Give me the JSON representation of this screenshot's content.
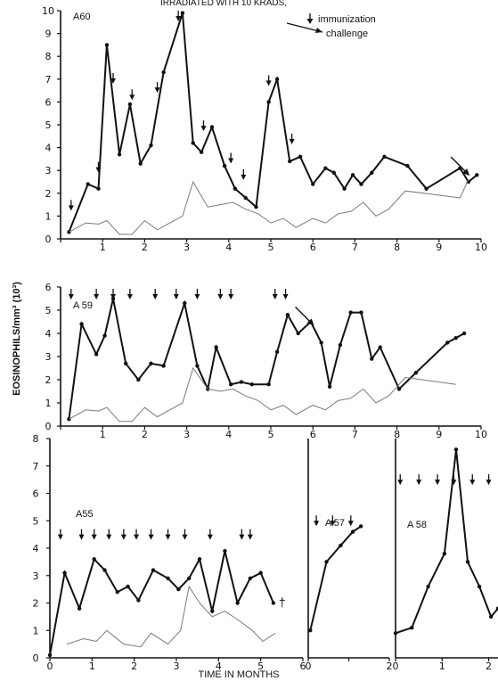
{
  "header": {
    "title_fragment": "IRRADIATED WITH 10 KRADS,"
  },
  "legend": {
    "arrow_label": "immunization",
    "challenge_label": "challenge"
  },
  "y_axis_label": "EOSINOPHILS/mm³ (10³)",
  "x_axis_label": "TIME IN MONTHS",
  "colors": {
    "ink": "#111111",
    "paper": "#ffffff",
    "thin_line": "#7a7a7a"
  },
  "chart_data": [
    {
      "id": "A60",
      "label": "A60",
      "type": "line",
      "xlim": [
        0,
        10
      ],
      "ylim": [
        0,
        10
      ],
      "x_ticks": [
        0,
        1,
        2,
        3,
        4,
        5,
        6,
        7,
        8,
        9,
        10
      ],
      "x_tick_labels": [
        "",
        "1",
        "2",
        "3",
        "4",
        "5",
        "6",
        "7",
        "8",
        "9",
        "10"
      ],
      "y_ticks": [
        0,
        1,
        2,
        3,
        4,
        5,
        6,
        7,
        8,
        9,
        10
      ],
      "y_tick_labels": [
        "0",
        "1",
        "2",
        "3",
        "4",
        "5",
        "6",
        "7",
        "8",
        "9",
        "10"
      ],
      "series": [
        {
          "style": "bold",
          "x": [
            0.2,
            0.65,
            0.9,
            1.1,
            1.4,
            1.65,
            1.9,
            2.15,
            2.45,
            2.9,
            3.15,
            3.35,
            3.6,
            3.9,
            4.15,
            4.4,
            4.65,
            4.95,
            5.15,
            5.45,
            5.7,
            6.0,
            6.3,
            6.5,
            6.75,
            6.95,
            7.15,
            7.4,
            7.7,
            8.25,
            8.7,
            9.5,
            9.7,
            9.9
          ],
          "y": [
            0.3,
            2.4,
            2.2,
            8.5,
            3.7,
            5.9,
            3.3,
            4.1,
            7.3,
            9.9,
            4.2,
            3.8,
            4.9,
            3.2,
            2.2,
            1.8,
            1.4,
            6.0,
            7.0,
            3.4,
            3.6,
            2.4,
            3.1,
            2.9,
            2.2,
            2.8,
            2.4,
            2.9,
            3.6,
            3.2,
            2.2,
            3.1,
            2.5,
            2.8
          ]
        },
        {
          "style": "thin",
          "x": [
            0.2,
            0.6,
            0.9,
            1.1,
            1.4,
            1.7,
            2.0,
            2.3,
            2.6,
            2.9,
            3.15,
            3.5,
            3.8,
            4.1,
            4.4,
            4.7,
            5.0,
            5.3,
            5.6,
            6.0,
            6.3,
            6.6,
            6.9,
            7.2,
            7.5,
            7.8,
            8.2,
            9.5,
            9.7
          ],
          "y": [
            0.3,
            0.7,
            0.65,
            0.8,
            0.2,
            0.2,
            0.8,
            0.4,
            0.7,
            1.0,
            2.5,
            1.4,
            1.5,
            1.6,
            1.3,
            1.1,
            0.7,
            0.9,
            0.5,
            0.9,
            0.7,
            1.1,
            1.2,
            1.6,
            1.0,
            1.3,
            2.1,
            1.8,
            2.6
          ]
        }
      ],
      "immunization_x": [
        0.25,
        0.9,
        1.25,
        1.7,
        2.3,
        2.8,
        3.4,
        4.05,
        4.35,
        4.95,
        5.5
      ],
      "challenge_x": [
        9.75
      ]
    },
    {
      "id": "A59",
      "label": "A 59",
      "type": "line",
      "xlim": [
        0,
        10
      ],
      "ylim": [
        0,
        6
      ],
      "x_ticks": [
        0,
        1,
        2,
        3,
        4,
        5,
        6,
        7,
        8,
        9,
        10
      ],
      "x_tick_labels": [
        "",
        "1",
        "2",
        "3",
        "4",
        "5",
        "6",
        "7",
        "8",
        "9",
        "10"
      ],
      "y_ticks": [
        0,
        1,
        2,
        3,
        4,
        5,
        6
      ],
      "y_tick_labels": [
        "0",
        "1",
        "2",
        "3",
        "4",
        "5",
        "6"
      ],
      "series": [
        {
          "style": "bold",
          "x": [
            0.2,
            0.5,
            0.85,
            1.05,
            1.25,
            1.55,
            1.85,
            2.15,
            2.45,
            2.95,
            3.25,
            3.5,
            3.7,
            4.05,
            4.3,
            4.55,
            4.95,
            5.15,
            5.4,
            5.65,
            5.95,
            6.2,
            6.4,
            6.65,
            6.9,
            7.15,
            7.4,
            7.6,
            8.05,
            8.45,
            9.2,
            9.4,
            9.6
          ],
          "y": [
            0.3,
            4.4,
            3.1,
            3.9,
            5.5,
            2.7,
            2.0,
            2.7,
            2.6,
            5.3,
            2.6,
            1.6,
            3.4,
            1.8,
            1.9,
            1.8,
            1.8,
            3.2,
            4.8,
            4.0,
            4.5,
            3.6,
            1.7,
            3.5,
            4.9,
            4.9,
            2.9,
            3.4,
            1.6,
            2.3,
            3.6,
            3.8,
            4.0
          ]
        },
        {
          "style": "thin",
          "x": [
            0.2,
            0.6,
            0.9,
            1.1,
            1.4,
            1.7,
            2.0,
            2.3,
            2.6,
            2.9,
            3.15,
            3.5,
            3.8,
            4.1,
            4.4,
            4.7,
            5.0,
            5.3,
            5.6,
            6.0,
            6.3,
            6.6,
            6.9,
            7.2,
            7.5,
            7.8,
            8.2,
            9.4
          ],
          "y": [
            0.3,
            0.7,
            0.65,
            0.8,
            0.2,
            0.2,
            0.8,
            0.4,
            0.7,
            1.0,
            2.5,
            1.6,
            1.5,
            1.6,
            1.3,
            1.1,
            0.7,
            0.9,
            0.5,
            0.9,
            0.7,
            1.1,
            1.2,
            1.6,
            1.0,
            1.3,
            2.1,
            1.8
          ]
        }
      ],
      "immunization_x": [
        0.25,
        0.85,
        1.25,
        1.65,
        2.25,
        2.75,
        3.25,
        3.8,
        4.05,
        5.1,
        5.35
      ],
      "challenge_x": [
        6.05
      ]
    },
    {
      "id": "A55",
      "label": "A55",
      "type": "line",
      "xlim": [
        0,
        6
      ],
      "ylim": [
        0,
        8
      ],
      "x_ticks": [
        0,
        1,
        2,
        3,
        4,
        5,
        6
      ],
      "x_tick_labels": [
        "0",
        "1",
        "2",
        "3",
        "4",
        "5",
        "6"
      ],
      "y_ticks": [
        0,
        1,
        2,
        3,
        4,
        5,
        6,
        7,
        8
      ],
      "y_tick_labels": [
        "0",
        "1",
        "2",
        "3",
        "4",
        "5",
        "6",
        "7",
        "8"
      ],
      "death_marker": "†",
      "series": [
        {
          "style": "bold",
          "x": [
            0.0,
            0.35,
            0.7,
            1.05,
            1.3,
            1.6,
            1.85,
            2.1,
            2.45,
            2.8,
            3.05,
            3.3,
            3.55,
            3.85,
            4.15,
            4.45,
            4.75,
            5.0,
            5.3
          ],
          "y": [
            0.1,
            3.1,
            1.8,
            3.6,
            3.2,
            2.4,
            2.6,
            2.1,
            3.2,
            2.9,
            2.5,
            2.9,
            3.6,
            1.7,
            3.9,
            2.0,
            2.9,
            3.1,
            2.0
          ]
        },
        {
          "style": "thin",
          "x": [
            0.4,
            0.8,
            1.1,
            1.35,
            1.75,
            2.15,
            2.4,
            2.8,
            3.1,
            3.3,
            3.55,
            3.85,
            4.15,
            4.45,
            4.8,
            5.05,
            5.35
          ],
          "y": [
            0.5,
            0.7,
            0.6,
            1.0,
            0.5,
            0.4,
            0.9,
            0.5,
            1.0,
            2.6,
            2.0,
            1.5,
            1.7,
            1.4,
            1.0,
            0.6,
            0.9
          ]
        }
      ],
      "immunization_x": [
        0.25,
        0.75,
        1.05,
        1.4,
        1.75,
        2.05,
        2.4,
        2.8,
        3.2,
        3.8,
        4.55,
        4.75
      ]
    },
    {
      "id": "A57",
      "label": "A 57",
      "type": "line",
      "xlim": [
        0,
        2
      ],
      "ylim": [
        0,
        8
      ],
      "x_ticks": [
        0,
        1,
        2
      ],
      "x_tick_labels": [
        "0",
        "",
        "2"
      ],
      "series": [
        {
          "style": "bold",
          "x": [
            0.05,
            0.45,
            0.8,
            1.1,
            1.3
          ],
          "y": [
            1.0,
            3.5,
            4.1,
            4.6,
            4.8
          ]
        }
      ],
      "immunization_x": [
        0.2,
        0.6,
        1.05
      ]
    },
    {
      "id": "A58",
      "label": "A 58",
      "type": "line",
      "xlim": [
        0,
        2.2
      ],
      "ylim": [
        0,
        8
      ],
      "x_ticks": [
        0,
        1,
        2
      ],
      "x_tick_labels": [
        "0",
        "1",
        "2"
      ],
      "series": [
        {
          "style": "bold",
          "x": [
            0.0,
            0.35,
            0.7,
            1.05,
            1.3,
            1.55,
            1.8,
            2.05,
            2.2
          ],
          "y": [
            0.9,
            1.1,
            2.6,
            3.8,
            7.6,
            3.5,
            2.6,
            1.5,
            1.8
          ]
        }
      ],
      "immunization_x": [
        0.1,
        0.5,
        0.9,
        1.25,
        1.65,
        2.0
      ]
    }
  ]
}
